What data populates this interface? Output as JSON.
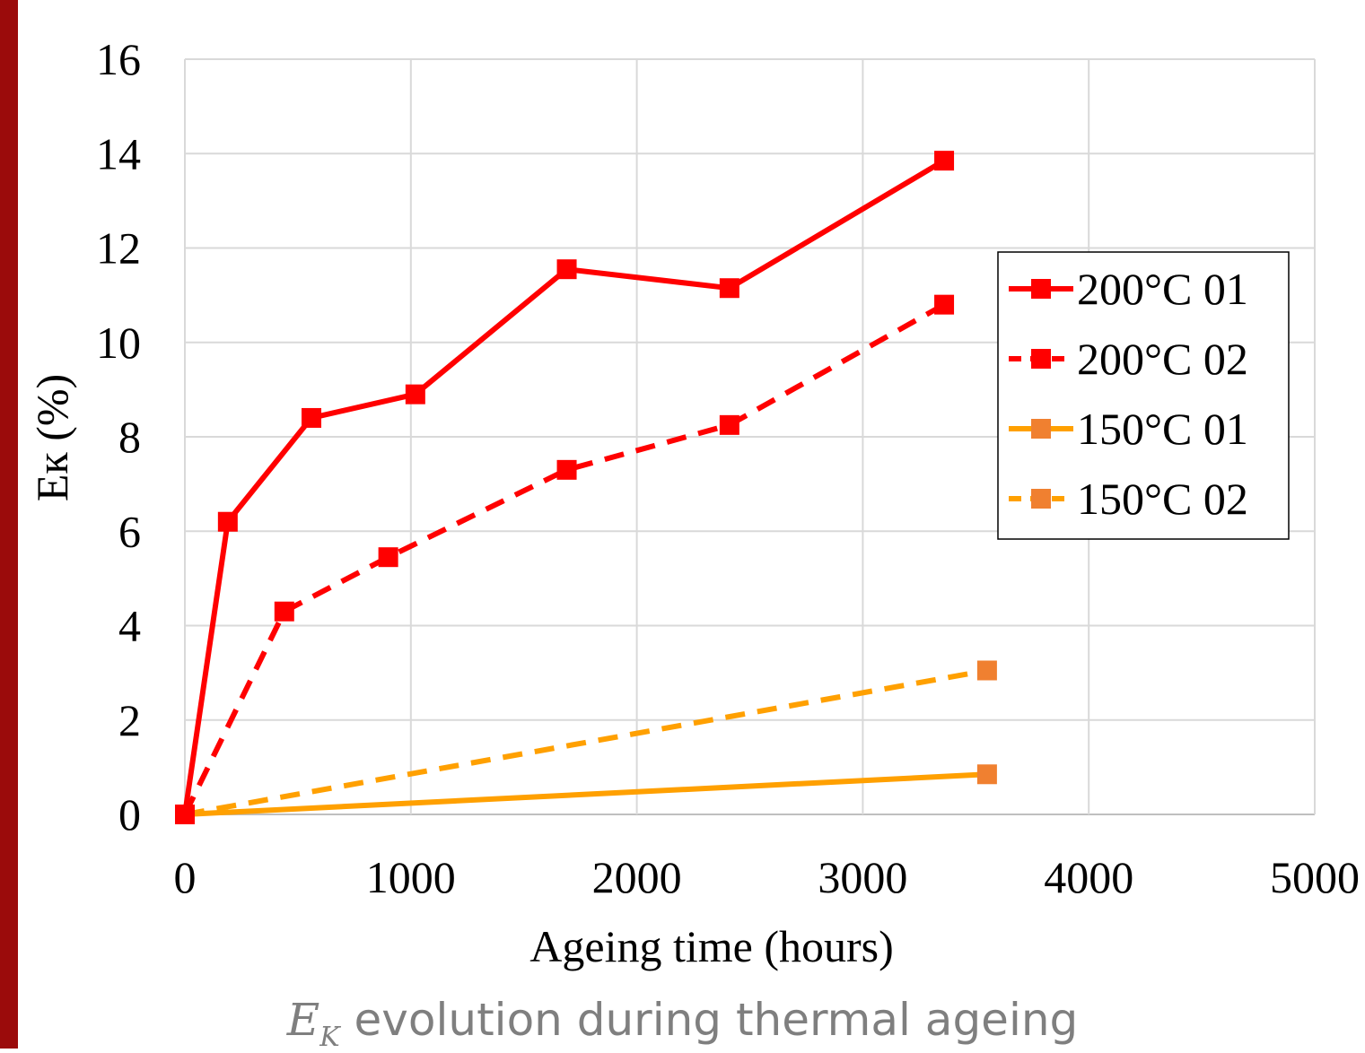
{
  "caption": {
    "symbol": "E",
    "subscript": "K",
    "text": " evolution during thermal ageing"
  },
  "chart_data": {
    "type": "line",
    "xlabel": "Ageing time (hours)",
    "ylabel": "Eк (%)",
    "xlim": [
      0,
      5000
    ],
    "ylim": [
      0,
      16
    ],
    "xticks": [
      "0",
      "1000",
      "2000",
      "3000",
      "4000",
      "5000"
    ],
    "yticks": [
      "0",
      "2",
      "4",
      "6",
      "8",
      "10",
      "12",
      "14",
      "16"
    ],
    "grid": true,
    "legend_position": "right",
    "series": [
      {
        "name": "200°C 01",
        "color": "#ff0000",
        "dashed": false,
        "x": [
          0,
          190,
          560,
          1020,
          1690,
          2410,
          3360
        ],
        "y": [
          0,
          6.2,
          8.4,
          8.9,
          11.55,
          11.15,
          13.85
        ]
      },
      {
        "name": "200°C 02",
        "color": "#ff0000",
        "dashed": true,
        "x": [
          0,
          440,
          900,
          1690,
          2410,
          3360
        ],
        "y": [
          0,
          4.3,
          5.45,
          7.3,
          8.25,
          10.8
        ]
      },
      {
        "name": "150°C 01",
        "color": "#ffa000",
        "marker_color": "#f08030",
        "dashed": false,
        "x": [
          0,
          3550
        ],
        "y": [
          0,
          0.85
        ]
      },
      {
        "name": "150°C 02",
        "color": "#ffa000",
        "marker_color": "#f08030",
        "dashed": true,
        "x": [
          0,
          3550
        ],
        "y": [
          0,
          3.05
        ]
      }
    ]
  }
}
